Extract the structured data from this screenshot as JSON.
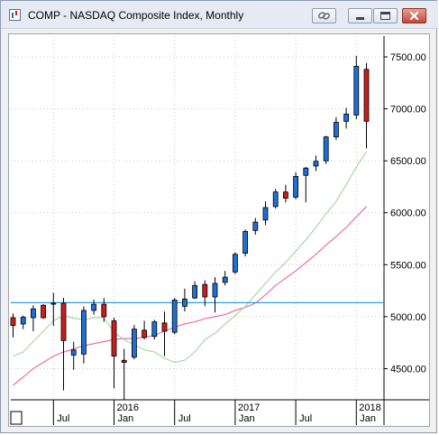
{
  "window": {
    "title": "COMP - NASDAQ Composite Index, Monthly"
  },
  "titlebar_buttons": [
    {
      "name": "link-icon"
    },
    {
      "name": "minimize-icon"
    },
    {
      "name": "maximize-icon"
    },
    {
      "name": "close-icon"
    }
  ],
  "colors": {
    "up_candle": "#1f6fd6",
    "down_candle": "#c81e1e",
    "ma_fast": "#a6d8a6",
    "ma_slow": "#ee6fa0",
    "horizontal_line": "#29a3dd",
    "window_border": "#8b9bb4"
  },
  "chart_data": {
    "type": "candlestick",
    "title": "COMP - NASDAQ Composite Index, Monthly",
    "ylim": [
      4200,
      7700
    ],
    "y_ticks": [
      "4500.00",
      "5000.00",
      "5500.00",
      "6000.00",
      "6500.00",
      "7000.00",
      "7500.00"
    ],
    "x_ticks": [
      {
        "label": "Jul",
        "index": 4
      },
      {
        "label": "Jan",
        "index": 10
      },
      {
        "label": "Jul",
        "index": 16
      },
      {
        "label": "Jan",
        "index": 22
      },
      {
        "label": "Jul",
        "index": 28
      },
      {
        "label": "Jan",
        "index": 34
      }
    ],
    "year_labels": [
      {
        "label": "2016",
        "index": 10
      },
      {
        "label": "2017",
        "index": 22
      },
      {
        "label": "2018",
        "index": 34
      }
    ],
    "horizontal_line": 5135,
    "grid": true,
    "candles": [
      {
        "o": 4990,
        "h": 5030,
        "l": 4800,
        "c": 4915
      },
      {
        "o": 4930,
        "h": 5010,
        "l": 4880,
        "c": 4995
      },
      {
        "o": 4990,
        "h": 5110,
        "l": 4860,
        "c": 5075
      },
      {
        "o": 5110,
        "h": 5120,
        "l": 4980,
        "c": 4990
      },
      {
        "o": 5130,
        "h": 5230,
        "l": 4910,
        "c": 5120
      },
      {
        "o": 5130,
        "h": 5180,
        "l": 4290,
        "c": 4770
      },
      {
        "o": 4630,
        "h": 4760,
        "l": 4490,
        "c": 4680
      },
      {
        "o": 4640,
        "h": 5100,
        "l": 4550,
        "c": 5060
      },
      {
        "o": 5060,
        "h": 5165,
        "l": 5020,
        "c": 5120
      },
      {
        "o": 5120,
        "h": 5180,
        "l": 4950,
        "c": 5000
      },
      {
        "o": 4960,
        "h": 4990,
        "l": 4310,
        "c": 4620
      },
      {
        "o": 4580,
        "h": 4690,
        "l": 4200,
        "c": 4560
      },
      {
        "o": 4610,
        "h": 4920,
        "l": 4590,
        "c": 4880
      },
      {
        "o": 4870,
        "h": 4960,
        "l": 4780,
        "c": 4800
      },
      {
        "o": 4810,
        "h": 4970,
        "l": 4780,
        "c": 4950
      },
      {
        "o": 4940,
        "h": 5050,
        "l": 4620,
        "c": 4860
      },
      {
        "o": 4850,
        "h": 5180,
        "l": 4830,
        "c": 5160
      },
      {
        "o": 5100,
        "h": 5270,
        "l": 5050,
        "c": 5170
      },
      {
        "o": 5180,
        "h": 5340,
        "l": 5170,
        "c": 5300
      },
      {
        "o": 5310,
        "h": 5350,
        "l": 5100,
        "c": 5190
      },
      {
        "o": 5190,
        "h": 5380,
        "l": 5040,
        "c": 5320
      },
      {
        "o": 5330,
        "h": 5440,
        "l": 5300,
        "c": 5380
      },
      {
        "o": 5430,
        "h": 5620,
        "l": 5410,
        "c": 5600
      },
      {
        "o": 5610,
        "h": 5840,
        "l": 5580,
        "c": 5820
      },
      {
        "o": 5830,
        "h": 5950,
        "l": 5790,
        "c": 5910
      },
      {
        "o": 5930,
        "h": 6110,
        "l": 5880,
        "c": 6050
      },
      {
        "o": 6060,
        "h": 6230,
        "l": 6040,
        "c": 6200
      },
      {
        "o": 6200,
        "h": 6270,
        "l": 6100,
        "c": 6140
      },
      {
        "o": 6150,
        "h": 6390,
        "l": 6130,
        "c": 6350
      },
      {
        "o": 6360,
        "h": 6440,
        "l": 6100,
        "c": 6430
      },
      {
        "o": 6450,
        "h": 6550,
        "l": 6400,
        "c": 6495
      },
      {
        "o": 6500,
        "h": 6740,
        "l": 6470,
        "c": 6730
      },
      {
        "o": 6730,
        "h": 6920,
        "l": 6700,
        "c": 6870
      },
      {
        "o": 6880,
        "h": 7010,
        "l": 6810,
        "c": 6950
      },
      {
        "o": 6940,
        "h": 7510,
        "l": 6900,
        "c": 7410
      },
      {
        "o": 7380,
        "h": 7440,
        "l": 6620,
        "c": 6880
      }
    ],
    "ma_fast": [
      4620,
      4660,
      4760,
      4860,
      4960,
      5010,
      4985,
      4970,
      4990,
      4990,
      4850,
      4780,
      4730,
      4680,
      4660,
      4600,
      4560,
      4580,
      4660,
      4780,
      4840,
      4930,
      5010,
      5100,
      5210,
      5320,
      5430,
      5520,
      5630,
      5740,
      5860,
      5990,
      6110,
      6270,
      6440,
      6590
    ],
    "ma_slow": [
      4340,
      4420,
      4500,
      4560,
      4620,
      4660,
      4690,
      4720,
      4740,
      4760,
      4780,
      4790,
      4790,
      4800,
      4820,
      4860,
      4900,
      4930,
      4950,
      4980,
      5000,
      5020,
      5060,
      5090,
      5130,
      5210,
      5300,
      5370,
      5440,
      5520,
      5600,
      5690,
      5770,
      5860,
      5960,
      6060
    ]
  }
}
